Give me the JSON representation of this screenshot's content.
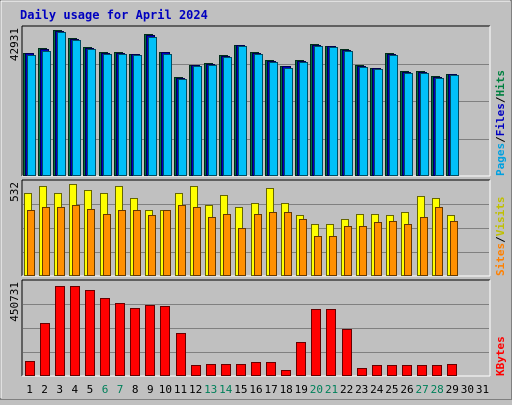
{
  "chart_data": {
    "type": "bar",
    "title": "Daily usage for April 2024",
    "categories": [
      "1",
      "2",
      "3",
      "4",
      "5",
      "6",
      "7",
      "8",
      "9",
      "10",
      "11",
      "12",
      "13",
      "14",
      "15",
      "16",
      "17",
      "18",
      "19",
      "20",
      "21",
      "22",
      "23",
      "24",
      "25",
      "26",
      "27",
      "28",
      "29",
      "30",
      "31"
    ],
    "weekend_days": [
      "6",
      "7",
      "13",
      "14",
      "20",
      "21",
      "27",
      "28"
    ],
    "panels": [
      {
        "id": "pages-files-hits",
        "max_label": "42931",
        "ylim": [
          0,
          42931
        ],
        "right_label": [
          {
            "text": "Pages",
            "color": "#00a0e0"
          },
          {
            "text": "/",
            "color": "#000000"
          },
          {
            "text": "Files",
            "color": "#0000c0"
          },
          {
            "text": "/",
            "color": "#000000"
          },
          {
            "text": "Hits",
            "color": "#008040"
          }
        ],
        "series": [
          {
            "name": "Hits",
            "color": "#007040",
            "values": [
              36300,
              37500,
              42931,
              40500,
              37800,
              36500,
              36500,
              36000,
              41700,
              36600,
              29100,
              32700,
              33200,
              35600,
              38600,
              36400,
              34000,
              32400,
              34100,
              38700,
              38300,
              37200,
              32500,
              31900,
              36100,
              30900,
              30900,
              29300,
              30100,
              null,
              null
            ]
          },
          {
            "name": "Files",
            "color": "#0000c0",
            "values": [
              36100,
              37300,
              42600,
              40300,
              37600,
              36300,
              36300,
              35800,
              41400,
              36400,
              28900,
              32500,
              33000,
              35400,
              38400,
              36200,
              33800,
              32200,
              33900,
              38500,
              38100,
              37000,
              32300,
              31700,
              35900,
              30700,
              30700,
              29100,
              29900,
              null,
              null
            ]
          },
          {
            "name": "Pages",
            "color": "#00c0f8",
            "values": [
              35700,
              36900,
              42300,
              40000,
              37300,
              36000,
              36000,
              35500,
              41000,
              36000,
              28600,
              32200,
              32700,
              35100,
              38100,
              35800,
              33500,
              31900,
              33600,
              38100,
              37800,
              36700,
              32000,
              31400,
              35600,
              30400,
              30400,
              28800,
              29600,
              null,
              null
            ]
          }
        ]
      },
      {
        "id": "visits-sites",
        "max_label": "532",
        "ylim": [
          0,
          532
        ],
        "right_label": [
          {
            "text": "Sites",
            "color": "#ff8000"
          },
          {
            "text": "/",
            "color": "#000000"
          },
          {
            "text": "Visits",
            "color": "#c0c000"
          }
        ],
        "series": [
          {
            "name": "Visits",
            "color": "#ffff00",
            "values": [
              480,
              520,
              480,
              532,
              500,
              480,
              520,
              450,
              380,
              380,
              480,
              520,
              410,
              470,
              400,
              420,
              510,
              420,
              350,
              300,
              300,
              330,
              360,
              360,
              350,
              370,
              460,
              450,
              350,
              null,
              null
            ]
          },
          {
            "name": "Sites",
            "color": "#ff9000",
            "values": [
              380,
              400,
              400,
              410,
              390,
              360,
              380,
              380,
              350,
              380,
              410,
              400,
              340,
              360,
              280,
              360,
              370,
              370,
              330,
              230,
              230,
              290,
              290,
              310,
              320,
              300,
              340,
              400,
              320,
              null,
              null
            ]
          }
        ]
      },
      {
        "id": "kbytes",
        "max_label": "450731",
        "ylim": [
          0,
          450731
        ],
        "right_label": [
          {
            "text": "KBytes",
            "color": "#ff0000"
          }
        ],
        "series": [
          {
            "name": "KBytes",
            "color": "#ff0000",
            "values": [
              73000,
              261000,
              440000,
              440000,
              423000,
              380000,
              356000,
              335000,
              350000,
              344000,
              213000,
              55000,
              60000,
              60000,
              60000,
              67000,
              67000,
              31000,
              166000,
              330000,
              330000,
              231000,
              40000,
              55000,
              52000,
              52000,
              52000,
              55000,
              60000,
              null,
              null
            ]
          }
        ]
      }
    ]
  }
}
